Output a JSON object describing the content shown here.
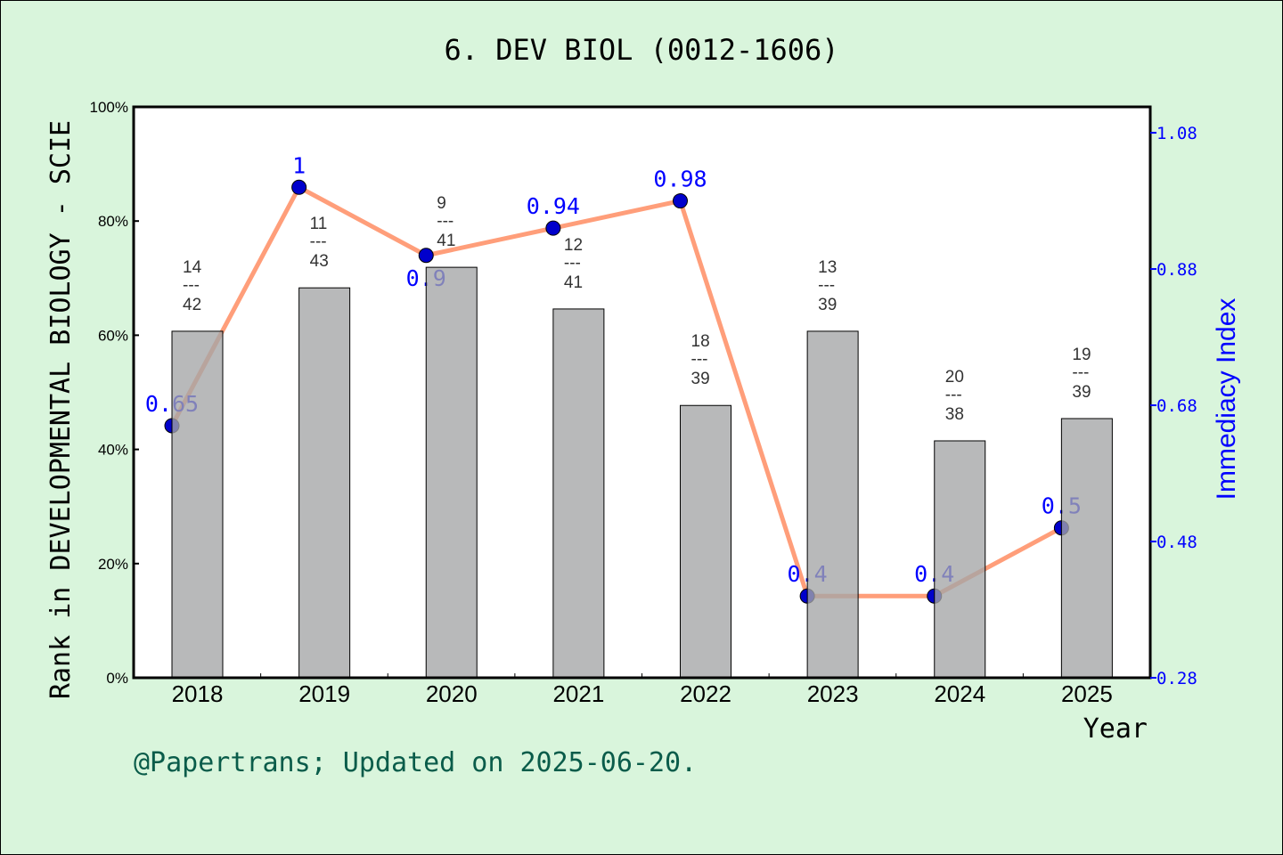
{
  "chart_data": {
    "type": "bar+line",
    "title": "6. DEV BIOL (0012-1606)",
    "xlabel": "Year",
    "ylabel_left": "Rank in DEVELOPMENTAL BIOLOGY - SCIE",
    "ylabel_right": "Immediacy Index",
    "categories": [
      "2018",
      "2019",
      "2020",
      "2021",
      "2022",
      "2023",
      "2024",
      "2025"
    ],
    "left_axis": {
      "ylim": [
        0,
        100
      ],
      "ticks": [
        "0%",
        "20%",
        "40%",
        "60%",
        "80%",
        "100%"
      ]
    },
    "right_axis": {
      "ylim": [
        0.28,
        1.118
      ],
      "ticks": [
        "0.28",
        "0.48",
        "0.68",
        "0.88",
        "1.08"
      ]
    },
    "bars": {
      "values": [
        60.7,
        68.3,
        71.9,
        64.6,
        47.7,
        60.7,
        41.5,
        45.4
      ],
      "rank_labels": [
        {
          "rank": "14",
          "total": "42"
        },
        {
          "rank": "11",
          "total": "43"
        },
        {
          "rank": "9",
          "total": "41"
        },
        {
          "rank": "12",
          "total": "41"
        },
        {
          "rank": "18",
          "total": "39"
        },
        {
          "rank": "13",
          "total": "39"
        },
        {
          "rank": "20",
          "total": "38"
        },
        {
          "rank": "19",
          "total": "39"
        }
      ],
      "color": "#b8b9ba"
    },
    "line": {
      "values": [
        0.65,
        1,
        0.9,
        0.94,
        0.98,
        0.4,
        0.4,
        0.5
      ],
      "labels": [
        "0.65",
        "1",
        "0.9",
        "0.94",
        "0.98",
        "0.4",
        "0.4",
        "0.5"
      ],
      "line_color": "#ff9e7a",
      "marker_color": "#0000cc",
      "label_color": "#0000ff"
    },
    "grid": false
  },
  "footer": "@Papertrans; Updated on 2025-06-20."
}
